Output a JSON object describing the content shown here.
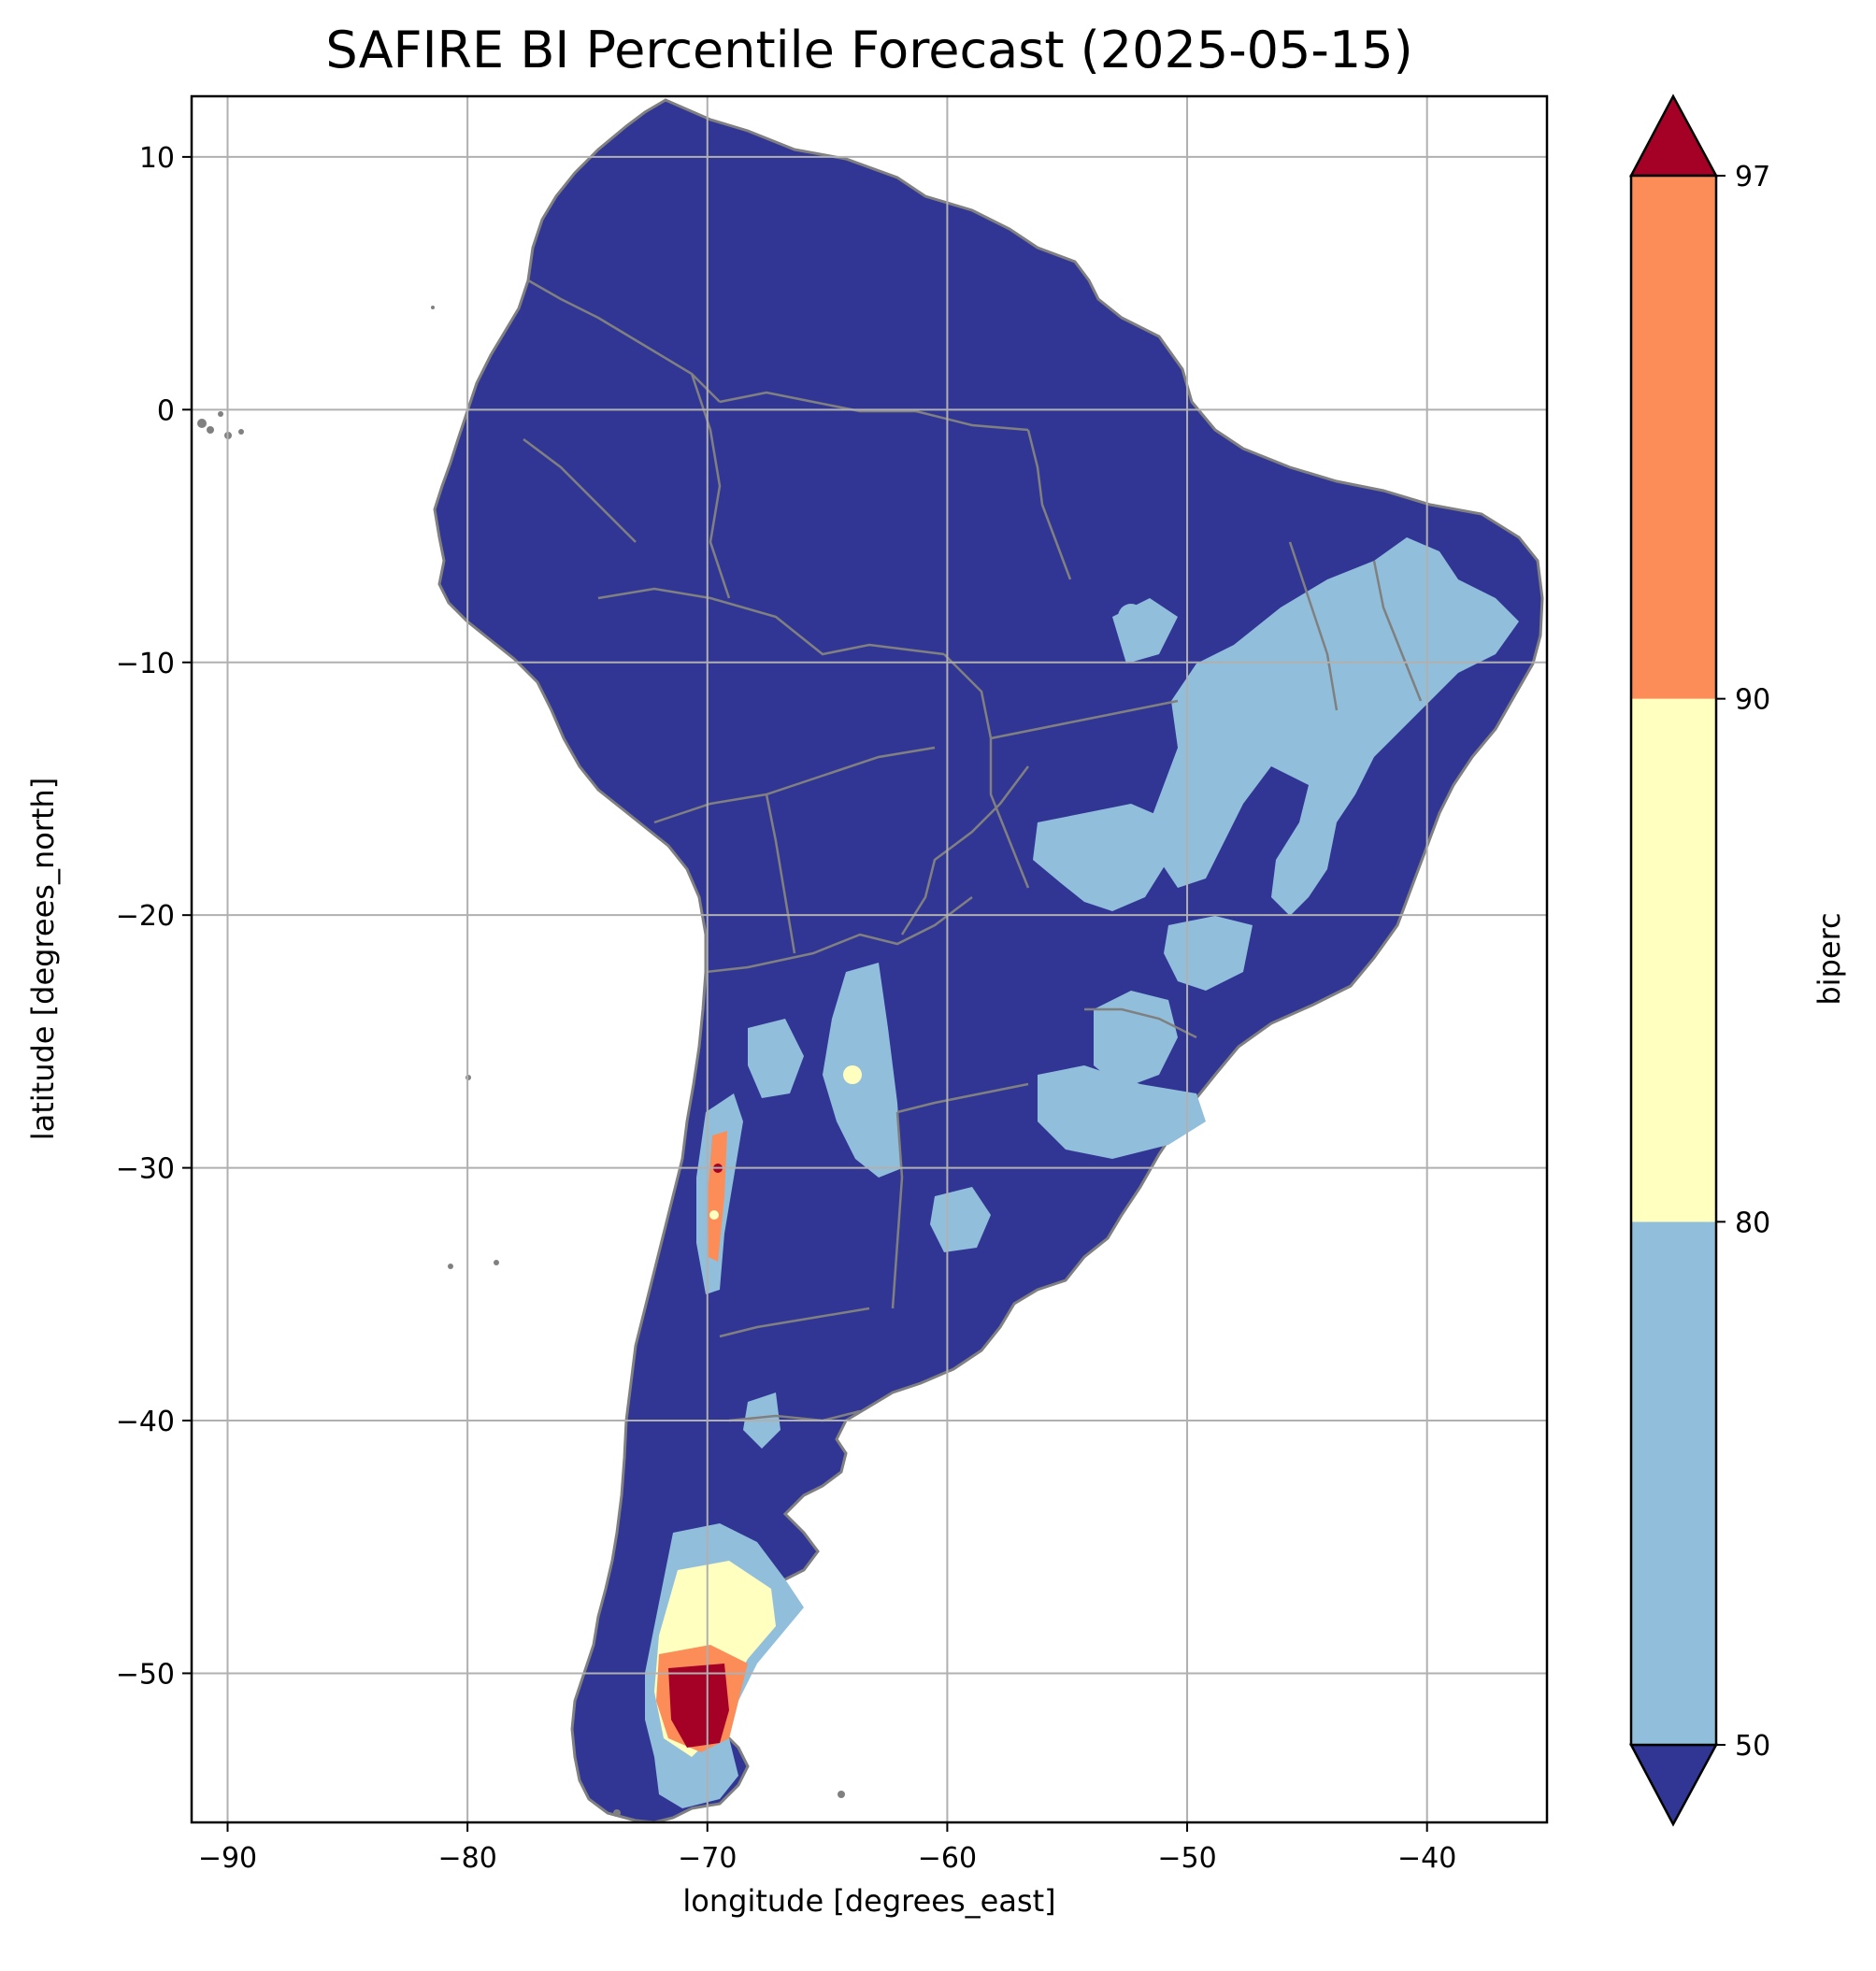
{
  "title": "SAFIRE BI Percentile Forecast (2025-05-15)",
  "map": {
    "xlabel": "longitude [degrees_east]",
    "ylabel": "latitude [degrees_north]",
    "xlim": [
      -91.5,
      -35
    ],
    "ylim": [
      -55.9,
      12.4
    ],
    "xticks": [
      -90,
      -80,
      -70,
      -60,
      -50,
      -40
    ],
    "yticks": [
      10,
      0,
      -10,
      -20,
      -30,
      -40,
      -50
    ],
    "grid": true,
    "land_color": "#313695",
    "border_color": "#808080",
    "regions": [
      {
        "name": "northeast-brazil",
        "class": "50-80",
        "color": "#91bfdb"
      },
      {
        "name": "central-brazil",
        "class": "50-80",
        "color": "#91bfdb"
      },
      {
        "name": "southern-brazil",
        "class": "50-80",
        "color": "#91bfdb"
      },
      {
        "name": "northwest-argentina",
        "class": "50-80",
        "color": "#91bfdb"
      },
      {
        "name": "andes-cuyo",
        "class": "80-97",
        "color": "#fee090"
      },
      {
        "name": "southern-patagonia",
        "class": ">97",
        "color": "#a50026"
      }
    ]
  },
  "colorbar": {
    "label": "biperc",
    "ticks": [
      50,
      80,
      90,
      97
    ],
    "segments": [
      {
        "from": 50,
        "to": 80,
        "color": "#91bfdb"
      },
      {
        "from": 80,
        "to": 90,
        "color": "#ffffbf"
      },
      {
        "from": 90,
        "to": 97,
        "color": "#fc8d59"
      }
    ],
    "under_color": "#313695",
    "over_color": "#a50026"
  }
}
